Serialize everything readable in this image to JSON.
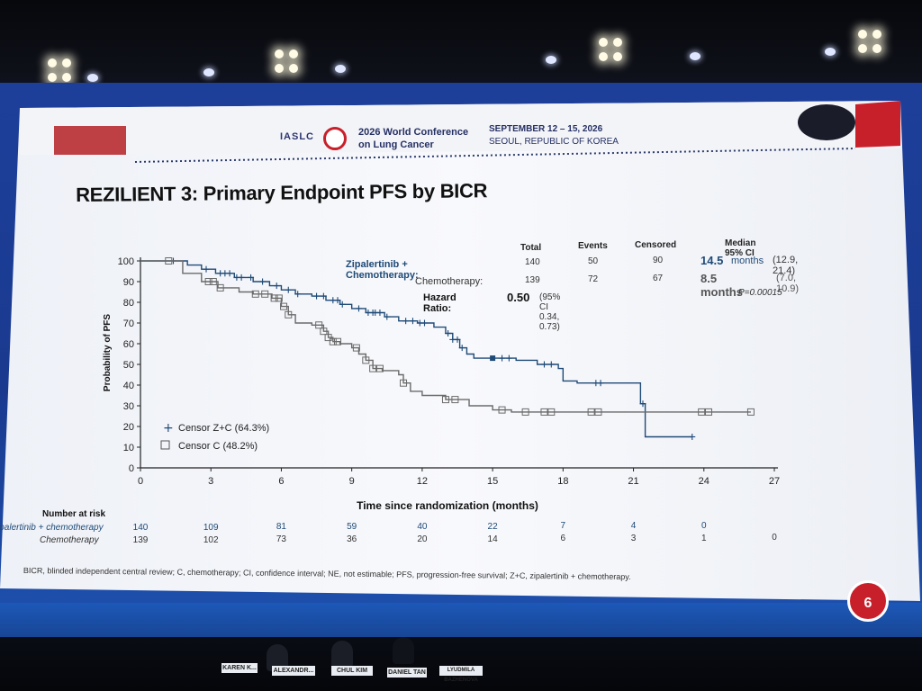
{
  "conference": {
    "org": "IASLC",
    "name_line1": "2026 World Conference",
    "name_line2": "on Lung Cancer",
    "dates": "SEPTEMBER 12 – 15, 2026",
    "location": "SEOUL, REPUBLIC OF KOREA"
  },
  "slide": {
    "title": "REZILIENT 3: Primary Endpoint PFS by BICR",
    "footnote": "BICR, blinded independent central review; C, chemotherapy; CI, confidence interval; NE, not estimable; PFS, progression-free survival; Z+C, zipalertinib + chemotherapy.",
    "page_number": "6"
  },
  "stats_table": {
    "headers": {
      "total": "Total",
      "events": "Events",
      "censored": "Censored",
      "median": "Median 95% CI"
    },
    "rows": [
      {
        "label": "Zipalertinib + Chemotherapy:",
        "total": "140",
        "events": "50",
        "censored": "90",
        "median_value": "14.5",
        "median_unit": "months",
        "ci": "(12.9, 21.4)"
      },
      {
        "label": "Chemotherapy:",
        "total": "139",
        "events": "72",
        "censored": "67",
        "median_value": "8.5 months",
        "median_unit": "",
        "ci": "(7.0, 10.9)"
      }
    ],
    "hazard_label": "Hazard Ratio:",
    "hazard_value": "0.50",
    "hazard_ci": "(95% CI 0.34, 0.73)",
    "p_value": "P=0.00015"
  },
  "risk_table": {
    "title": "Number at risk",
    "rows": [
      {
        "label": "zipalertinib + chemotherapy",
        "values": [
          "140",
          "109",
          "81",
          "59",
          "40",
          "22",
          "7",
          "4",
          "0"
        ]
      },
      {
        "label": "Chemotherapy",
        "values": [
          "139",
          "102",
          "73",
          "36",
          "20",
          "14",
          "6",
          "3",
          "1",
          "0"
        ]
      }
    ]
  },
  "stage": {
    "nameplates": [
      "KAREN K...",
      "ALEXANDR...",
      "CHUL KIM",
      "DANIEL TAN",
      "LYUDMILA BAZHENOVA"
    ]
  },
  "colors": {
    "zc_series": "#1f4a77",
    "c_series": "#6a6a6a",
    "accent_red": "#c8202a",
    "wall_blue": "#1d3f9a"
  },
  "chart_data": {
    "type": "line",
    "subtype": "kaplan-meier step",
    "xlabel": "Time since randomization (months)",
    "ylabel": "Probability of PFS",
    "xlim": [
      0,
      27
    ],
    "ylim": [
      0,
      100
    ],
    "xticks": [
      0,
      3,
      6,
      9,
      12,
      15,
      18,
      21,
      24,
      27
    ],
    "yticks": [
      0,
      10,
      20,
      30,
      40,
      50,
      60,
      70,
      80,
      90,
      100
    ],
    "grid": false,
    "legend_position": "bottom-left",
    "legend": [
      {
        "marker": "+",
        "label": "Censor Z+C (64.3%)"
      },
      {
        "marker": "square",
        "label": "Censor C (48.2%)"
      }
    ],
    "series": [
      {
        "name": "Zipalertinib + Chemotherapy",
        "marker": "+",
        "steps": [
          [
            0,
            100
          ],
          [
            1.2,
            100
          ],
          [
            2.0,
            98
          ],
          [
            2.6,
            96
          ],
          [
            3.2,
            94
          ],
          [
            4.0,
            92
          ],
          [
            4.8,
            90
          ],
          [
            5.5,
            88
          ],
          [
            6.0,
            86
          ],
          [
            6.6,
            84
          ],
          [
            7.3,
            83
          ],
          [
            7.9,
            81
          ],
          [
            8.5,
            79
          ],
          [
            9.0,
            77
          ],
          [
            9.6,
            75
          ],
          [
            10.4,
            73
          ],
          [
            11.0,
            71
          ],
          [
            11.8,
            70
          ],
          [
            12.5,
            68
          ],
          [
            13.0,
            65
          ],
          [
            13.3,
            62
          ],
          [
            13.6,
            58
          ],
          [
            13.9,
            55
          ],
          [
            14.2,
            53
          ],
          [
            16.0,
            52
          ],
          [
            16.9,
            50
          ],
          [
            17.8,
            48
          ],
          [
            18.0,
            42
          ],
          [
            18.6,
            41
          ],
          [
            21.0,
            41
          ],
          [
            21.3,
            31
          ],
          [
            21.5,
            15
          ],
          [
            23.5,
            15
          ]
        ],
        "censors": [
          1.4,
          2.8,
          3.4,
          3.6,
          3.8,
          4.1,
          4.3,
          4.7,
          5.2,
          5.8,
          6.3,
          6.7,
          7.5,
          7.8,
          8.2,
          8.4,
          8.6,
          9.3,
          9.7,
          9.9,
          10.0,
          10.2,
          10.5,
          11.3,
          11.6,
          11.9,
          12.1,
          13.1,
          13.3,
          13.5,
          13.7,
          15.0,
          15.4,
          15.7,
          17.2,
          17.5,
          19.4,
          19.6,
          21.4,
          23.5
        ],
        "filled_censor": [
          15.0
        ]
      },
      {
        "name": "Chemotherapy",
        "marker": "square",
        "steps": [
          [
            0,
            100
          ],
          [
            1.1,
            100
          ],
          [
            1.8,
            94
          ],
          [
            2.6,
            90
          ],
          [
            3.3,
            87
          ],
          [
            4.2,
            85
          ],
          [
            4.8,
            84
          ],
          [
            5.6,
            82
          ],
          [
            6.0,
            78
          ],
          [
            6.3,
            74
          ],
          [
            6.6,
            70
          ],
          [
            7.3,
            69
          ],
          [
            7.8,
            66
          ],
          [
            8.0,
            63
          ],
          [
            8.2,
            61
          ],
          [
            8.5,
            60
          ],
          [
            9.0,
            58
          ],
          [
            9.3,
            55
          ],
          [
            9.6,
            52
          ],
          [
            9.9,
            48
          ],
          [
            10.3,
            47
          ],
          [
            11.0,
            45
          ],
          [
            11.2,
            41
          ],
          [
            11.5,
            37
          ],
          [
            12.0,
            35
          ],
          [
            13.0,
            33
          ],
          [
            14.0,
            30
          ],
          [
            15.0,
            28
          ],
          [
            15.8,
            27
          ],
          [
            24.0,
            27
          ],
          [
            26.0,
            27
          ]
        ],
        "censors": [
          1.2,
          2.9,
          3.1,
          3.4,
          4.9,
          5.3,
          5.7,
          5.9,
          6.1,
          6.3,
          7.6,
          7.8,
          8.0,
          8.2,
          8.4,
          9.2,
          9.6,
          9.9,
          10.2,
          11.2,
          13.0,
          13.4,
          15.4,
          16.4,
          17.2,
          17.5,
          19.2,
          19.5,
          23.9,
          24.2,
          26.0
        ]
      }
    ]
  }
}
